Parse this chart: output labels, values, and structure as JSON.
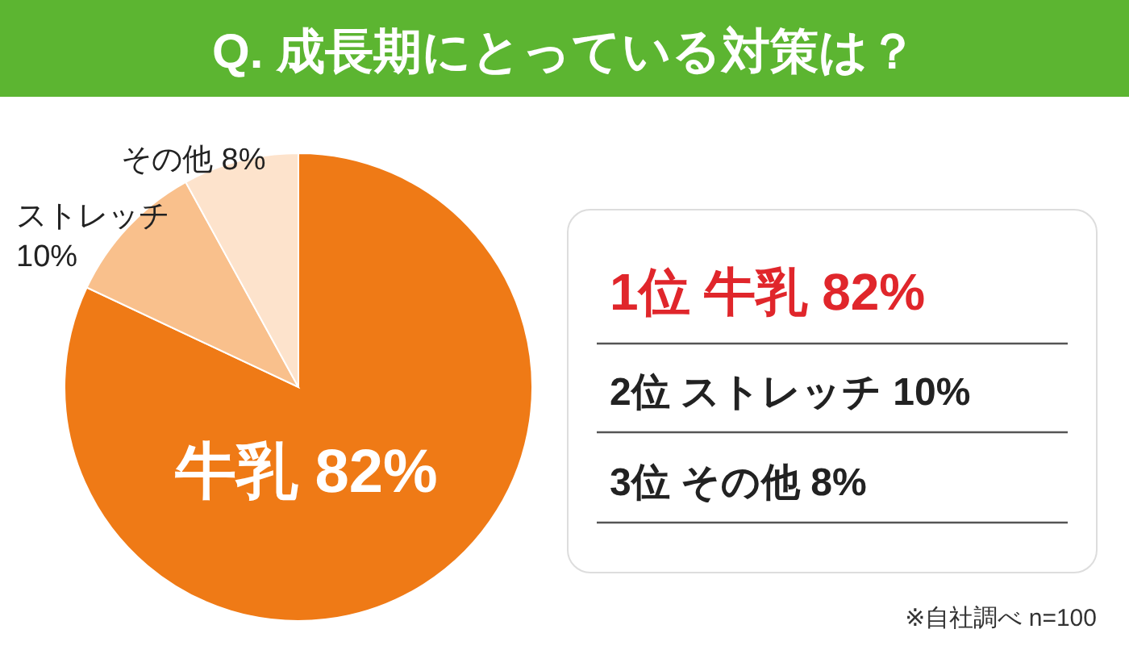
{
  "chart_data": [
    {
      "type": "pie",
      "title": "Q. 成長期にとっている対策は？",
      "categories": [
        "牛乳",
        "ストレッチ",
        "その他"
      ],
      "values": [
        82,
        10,
        8
      ],
      "colors": [
        "#ef7a16",
        "#f9c08c",
        "#fde3cc"
      ],
      "value_labels": [
        "82%",
        "10%",
        "8%"
      ],
      "annotations": [
        "※自社調べ n=100"
      ]
    },
    {
      "type": "other",
      "annotations": [
        "1位 牛乳 82%",
        "2位 ストレッチ 10%",
        "3位 その他 8%"
      ]
    }
  ]
}
